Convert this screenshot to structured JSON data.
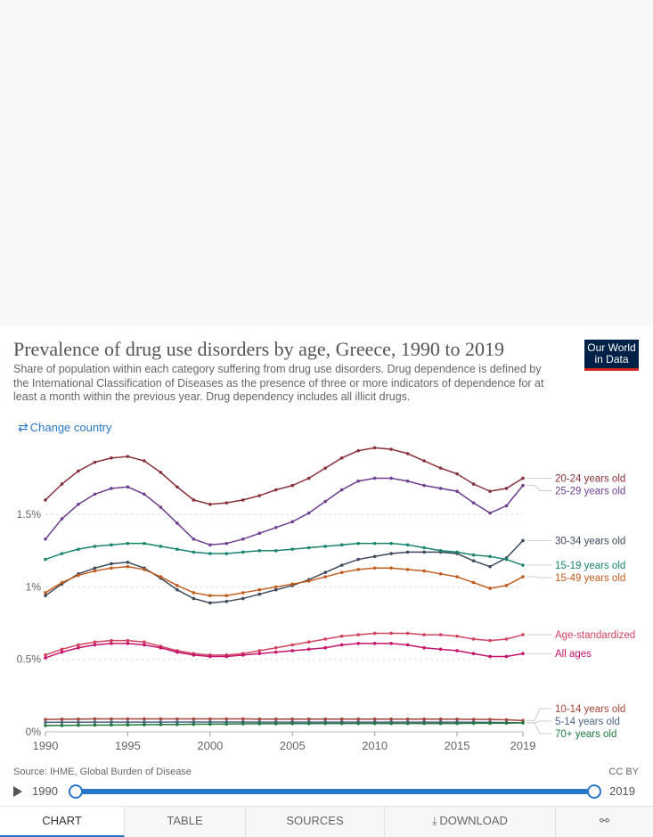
{
  "header": {
    "title": "Prevalence of drug use disorders by age, Greece, 1990 to 2019",
    "subtitle": "Share of population within each category suffering from drug use disorders. Drug dependence is defined by the International Classification of Diseases as the presence of three or more indicators of dependence for at least a month within the previous year. Drug dependency includes all illicit drugs.",
    "logo_line1": "Our World",
    "logo_line2": "in Data",
    "change_country": "Change country"
  },
  "chart_data": {
    "type": "line",
    "x": [
      1990,
      1991,
      1992,
      1993,
      1994,
      1995,
      1996,
      1997,
      1998,
      1999,
      2000,
      2001,
      2002,
      2003,
      2004,
      2005,
      2006,
      2007,
      2008,
      2009,
      2010,
      2011,
      2012,
      2013,
      2014,
      2015,
      2016,
      2017,
      2018,
      2019
    ],
    "xticks": [
      1990,
      1995,
      2000,
      2005,
      2010,
      2015,
      2019
    ],
    "yticks": [
      {
        "value": 0,
        "label": "0%"
      },
      {
        "value": 0.5,
        "label": "0.5%"
      },
      {
        "value": 1,
        "label": "1%"
      },
      {
        "value": 1.5,
        "label": "1.5%"
      }
    ],
    "ylim": [
      0,
      1.95
    ],
    "xlim": [
      1990,
      2019
    ],
    "grid": true,
    "legend": "right",
    "series": [
      {
        "name": "20-24 years old",
        "color": "#883039",
        "values": [
          1.6,
          1.71,
          1.8,
          1.86,
          1.89,
          1.9,
          1.87,
          1.79,
          1.69,
          1.6,
          1.57,
          1.58,
          1.6,
          1.63,
          1.67,
          1.7,
          1.75,
          1.82,
          1.89,
          1.94,
          1.96,
          1.95,
          1.92,
          1.87,
          1.82,
          1.78,
          1.71,
          1.66,
          1.68,
          1.75
        ]
      },
      {
        "name": "25-29 years old",
        "color": "#6d3e91",
        "values": [
          1.33,
          1.47,
          1.57,
          1.64,
          1.68,
          1.69,
          1.64,
          1.55,
          1.44,
          1.33,
          1.29,
          1.3,
          1.33,
          1.37,
          1.41,
          1.45,
          1.51,
          1.59,
          1.67,
          1.73,
          1.75,
          1.75,
          1.73,
          1.7,
          1.68,
          1.66,
          1.58,
          1.51,
          1.56,
          1.7
        ]
      },
      {
        "name": "30-34 years old",
        "color": "#3e4a5c",
        "values": [
          0.94,
          1.02,
          1.09,
          1.13,
          1.16,
          1.17,
          1.13,
          1.06,
          0.98,
          0.92,
          0.89,
          0.9,
          0.92,
          0.95,
          0.98,
          1.01,
          1.05,
          1.1,
          1.15,
          1.19,
          1.21,
          1.23,
          1.24,
          1.24,
          1.24,
          1.23,
          1.18,
          1.14,
          1.2,
          1.32
        ]
      },
      {
        "name": "15-19 years old",
        "color": "#18836e",
        "values": [
          1.19,
          1.23,
          1.26,
          1.28,
          1.29,
          1.3,
          1.3,
          1.28,
          1.26,
          1.24,
          1.23,
          1.23,
          1.24,
          1.25,
          1.25,
          1.26,
          1.27,
          1.28,
          1.29,
          1.3,
          1.3,
          1.3,
          1.29,
          1.27,
          1.25,
          1.24,
          1.22,
          1.21,
          1.19,
          1.15
        ]
      },
      {
        "name": "15-49 years old",
        "color": "#c15c1f",
        "values": [
          0.96,
          1.03,
          1.08,
          1.11,
          1.13,
          1.14,
          1.12,
          1.07,
          1.01,
          0.96,
          0.94,
          0.94,
          0.96,
          0.98,
          1.0,
          1.02,
          1.04,
          1.07,
          1.1,
          1.12,
          1.13,
          1.13,
          1.12,
          1.11,
          1.09,
          1.07,
          1.03,
          0.99,
          1.01,
          1.07
        ]
      },
      {
        "name": "Age-standardized",
        "color": "#d04361",
        "values": [
          0.53,
          0.57,
          0.6,
          0.62,
          0.63,
          0.63,
          0.62,
          0.59,
          0.56,
          0.54,
          0.53,
          0.53,
          0.54,
          0.56,
          0.58,
          0.6,
          0.62,
          0.64,
          0.66,
          0.67,
          0.68,
          0.68,
          0.68,
          0.67,
          0.67,
          0.66,
          0.64,
          0.63,
          0.64,
          0.67
        ]
      },
      {
        "name": "All ages",
        "color": "#c4146d",
        "values": [
          0.51,
          0.55,
          0.58,
          0.6,
          0.61,
          0.61,
          0.6,
          0.58,
          0.55,
          0.53,
          0.52,
          0.52,
          0.53,
          0.54,
          0.55,
          0.56,
          0.57,
          0.58,
          0.6,
          0.61,
          0.61,
          0.61,
          0.6,
          0.58,
          0.57,
          0.56,
          0.54,
          0.52,
          0.52,
          0.54
        ]
      },
      {
        "name": "10-14 years old",
        "color": "#a2463a",
        "values": [
          0.085,
          0.087,
          0.088,
          0.089,
          0.089,
          0.089,
          0.089,
          0.089,
          0.089,
          0.089,
          0.089,
          0.089,
          0.089,
          0.088,
          0.088,
          0.088,
          0.088,
          0.088,
          0.088,
          0.088,
          0.088,
          0.088,
          0.088,
          0.088,
          0.088,
          0.087,
          0.086,
          0.085,
          0.083,
          0.078
        ]
      },
      {
        "name": "5-14 years old",
        "color": "#4b6287",
        "values": [
          0.065,
          0.066,
          0.066,
          0.067,
          0.067,
          0.067,
          0.067,
          0.067,
          0.068,
          0.068,
          0.068,
          0.068,
          0.068,
          0.067,
          0.067,
          0.067,
          0.067,
          0.067,
          0.067,
          0.067,
          0.067,
          0.067,
          0.067,
          0.067,
          0.067,
          0.067,
          0.066,
          0.065,
          0.064,
          0.062
        ]
      },
      {
        "name": "70+ years old",
        "color": "#1d7a3c",
        "values": [
          0.043,
          0.044,
          0.045,
          0.046,
          0.047,
          0.048,
          0.049,
          0.05,
          0.051,
          0.052,
          0.053,
          0.054,
          0.055,
          0.056,
          0.056,
          0.057,
          0.057,
          0.058,
          0.058,
          0.058,
          0.058,
          0.058,
          0.058,
          0.058,
          0.058,
          0.058,
          0.059,
          0.059,
          0.06,
          0.062
        ]
      }
    ]
  },
  "footer": {
    "source": "Source: IHME, Global Burden of Disease",
    "license": "CC BY",
    "timeline_start": "1990",
    "timeline_end": "2019"
  },
  "tabs": {
    "chart": "CHART",
    "table": "TABLE",
    "sources": "SOURCES",
    "download": "DOWNLOAD"
  }
}
